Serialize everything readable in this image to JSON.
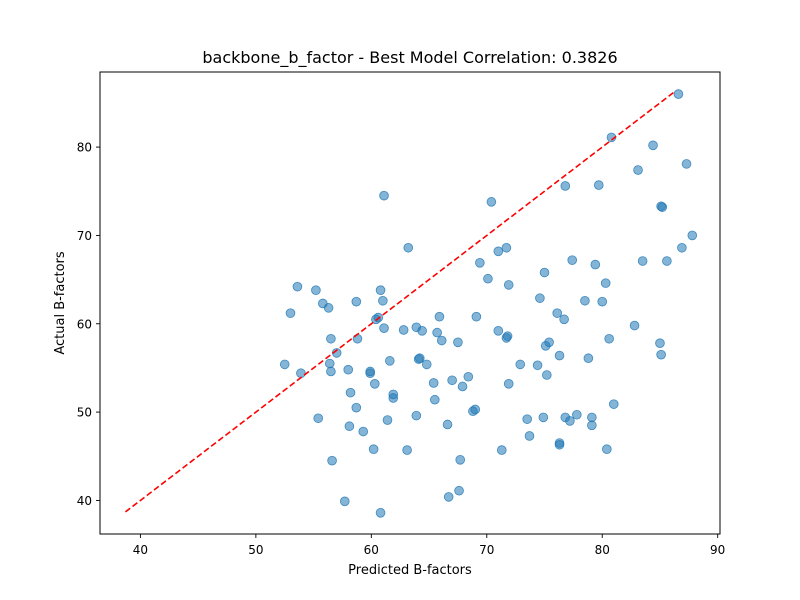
{
  "chart_data": {
    "type": "scatter",
    "title": "backbone_b_factor - Best Model Correlation: 0.3826",
    "xlabel": "Predicted B-factors",
    "ylabel": "Actual B-factors",
    "xlim": [
      36.5,
      90.2
    ],
    "ylim": [
      36.2,
      88.5
    ],
    "xticks": [
      40,
      50,
      60,
      70,
      80,
      90
    ],
    "yticks": [
      40,
      50,
      60,
      70,
      80
    ],
    "grid": false,
    "series": [
      {
        "marker_color": "#1f77b4",
        "points": [
          [
            52.5,
            55.4
          ],
          [
            53.0,
            61.2
          ],
          [
            53.6,
            64.2
          ],
          [
            53.9,
            54.4
          ],
          [
            55.2,
            63.8
          ],
          [
            55.4,
            49.3
          ],
          [
            55.8,
            62.3
          ],
          [
            56.3,
            61.8
          ],
          [
            56.4,
            55.5
          ],
          [
            56.5,
            54.6
          ],
          [
            56.5,
            58.3
          ],
          [
            56.6,
            44.5
          ],
          [
            57.0,
            56.7
          ],
          [
            57.7,
            39.9
          ],
          [
            58.0,
            54.8
          ],
          [
            58.1,
            48.4
          ],
          [
            58.2,
            52.2
          ],
          [
            58.7,
            62.5
          ],
          [
            58.7,
            50.5
          ],
          [
            58.8,
            58.3
          ],
          [
            59.3,
            47.8
          ],
          [
            59.9,
            54.6
          ],
          [
            59.9,
            54.4
          ],
          [
            60.2,
            45.8
          ],
          [
            60.3,
            53.2
          ],
          [
            60.4,
            60.5
          ],
          [
            60.6,
            60.7
          ],
          [
            60.8,
            63.8
          ],
          [
            60.8,
            38.6
          ],
          [
            61.0,
            62.6
          ],
          [
            61.1,
            74.5
          ],
          [
            61.1,
            59.5
          ],
          [
            61.4,
            49.1
          ],
          [
            61.6,
            55.8
          ],
          [
            61.9,
            52.0
          ],
          [
            61.9,
            51.6
          ],
          [
            62.8,
            59.3
          ],
          [
            63.1,
            45.7
          ],
          [
            63.2,
            68.6
          ],
          [
            63.9,
            59.6
          ],
          [
            63.9,
            49.6
          ],
          [
            64.1,
            56.0
          ],
          [
            64.2,
            56.1
          ],
          [
            64.4,
            59.2
          ],
          [
            64.8,
            55.4
          ],
          [
            65.4,
            53.3
          ],
          [
            65.5,
            51.4
          ],
          [
            65.7,
            59.0
          ],
          [
            65.9,
            60.8
          ],
          [
            66.1,
            58.1
          ],
          [
            66.6,
            48.6
          ],
          [
            66.7,
            40.4
          ],
          [
            67.0,
            53.6
          ],
          [
            67.5,
            57.9
          ],
          [
            67.6,
            41.1
          ],
          [
            67.7,
            44.6
          ],
          [
            67.9,
            52.9
          ],
          [
            68.4,
            54.0
          ],
          [
            68.8,
            50.1
          ],
          [
            69.0,
            50.3
          ],
          [
            69.1,
            60.8
          ],
          [
            69.4,
            66.9
          ],
          [
            70.1,
            65.1
          ],
          [
            70.4,
            73.8
          ],
          [
            71.0,
            59.2
          ],
          [
            71.0,
            68.2
          ],
          [
            71.3,
            45.7
          ],
          [
            71.7,
            68.6
          ],
          [
            71.7,
            58.4
          ],
          [
            71.8,
            58.6
          ],
          [
            71.9,
            53.2
          ],
          [
            71.9,
            64.4
          ],
          [
            72.9,
            55.4
          ],
          [
            73.5,
            49.2
          ],
          [
            73.7,
            47.3
          ],
          [
            74.4,
            55.3
          ],
          [
            74.6,
            62.9
          ],
          [
            74.9,
            49.4
          ],
          [
            75.0,
            65.8
          ],
          [
            75.1,
            57.5
          ],
          [
            75.2,
            54.2
          ],
          [
            75.4,
            57.9
          ],
          [
            76.1,
            61.2
          ],
          [
            76.3,
            56.4
          ],
          [
            76.3,
            46.5
          ],
          [
            76.3,
            46.3
          ],
          [
            76.7,
            60.5
          ],
          [
            76.8,
            49.4
          ],
          [
            76.8,
            75.6
          ],
          [
            77.2,
            49.0
          ],
          [
            77.4,
            67.2
          ],
          [
            77.8,
            49.7
          ],
          [
            78.5,
            62.6
          ],
          [
            78.8,
            56.1
          ],
          [
            79.1,
            48.5
          ],
          [
            79.1,
            49.4
          ],
          [
            79.4,
            66.7
          ],
          [
            79.7,
            75.7
          ],
          [
            80.0,
            62.5
          ],
          [
            80.3,
            64.6
          ],
          [
            80.4,
            45.8
          ],
          [
            80.6,
            58.3
          ],
          [
            80.8,
            81.1
          ],
          [
            81.0,
            50.9
          ],
          [
            82.8,
            59.8
          ],
          [
            83.1,
            77.4
          ],
          [
            83.5,
            67.1
          ],
          [
            84.4,
            80.2
          ],
          [
            85.0,
            57.8
          ],
          [
            85.1,
            56.5
          ],
          [
            85.1,
            73.3
          ],
          [
            85.2,
            73.2
          ],
          [
            85.6,
            67.1
          ],
          [
            86.6,
            86.0
          ],
          [
            86.9,
            68.6
          ],
          [
            87.3,
            78.1
          ],
          [
            87.8,
            70.0
          ]
        ]
      },
      {
        "type": "line",
        "style": "dashed",
        "line_color": "#ff0000",
        "points": [
          [
            38.7,
            38.7
          ],
          [
            86.2,
            86.2
          ]
        ]
      }
    ]
  }
}
